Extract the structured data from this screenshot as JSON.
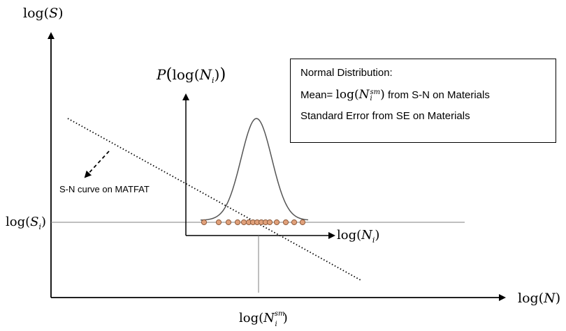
{
  "axes": {
    "y_label_prefix": "log(",
    "y_label_var": "S",
    "y_label_suffix": ")",
    "x_label_prefix": "log(",
    "x_label_var": "N",
    "x_label_suffix": ")"
  },
  "inner_axes": {
    "y_label_func": "P",
    "y_label_inner": "log(",
    "y_label_var": "N",
    "y_label_sub": "i",
    "y_label_close": ")",
    "x_label_prefix": "log(",
    "x_label_var": "N",
    "x_label_sub": "i",
    "x_label_suffix": ")"
  },
  "stress_level": {
    "prefix": "log(",
    "var": "S",
    "sub": "i",
    "suffix": ")"
  },
  "mean_cycles": {
    "prefix": "log(",
    "var": "N",
    "sup": "sm",
    "sub": "i",
    "suffix": ")"
  },
  "sn_curve_label": "S-N curve on MATFAT",
  "legend": {
    "line1": "Normal Distribution:",
    "line2_prefix": "Mean=",
    "line2_formula_prefix": "log(",
    "line2_formula_var": "N",
    "line2_formula_sup": "sm",
    "line2_formula_sub": "i",
    "line2_formula_suffix": ")",
    "line2_suffix": "from S-N on Materials",
    "line3": "Standard Error from SE on Materials"
  },
  "colors": {
    "sample_point_fill": "#e0a07a",
    "sample_point_stroke": "#8b5a3c",
    "distribution_curve": "#555555",
    "axis": "#000000",
    "guide_line": "#7f7f7f"
  }
}
